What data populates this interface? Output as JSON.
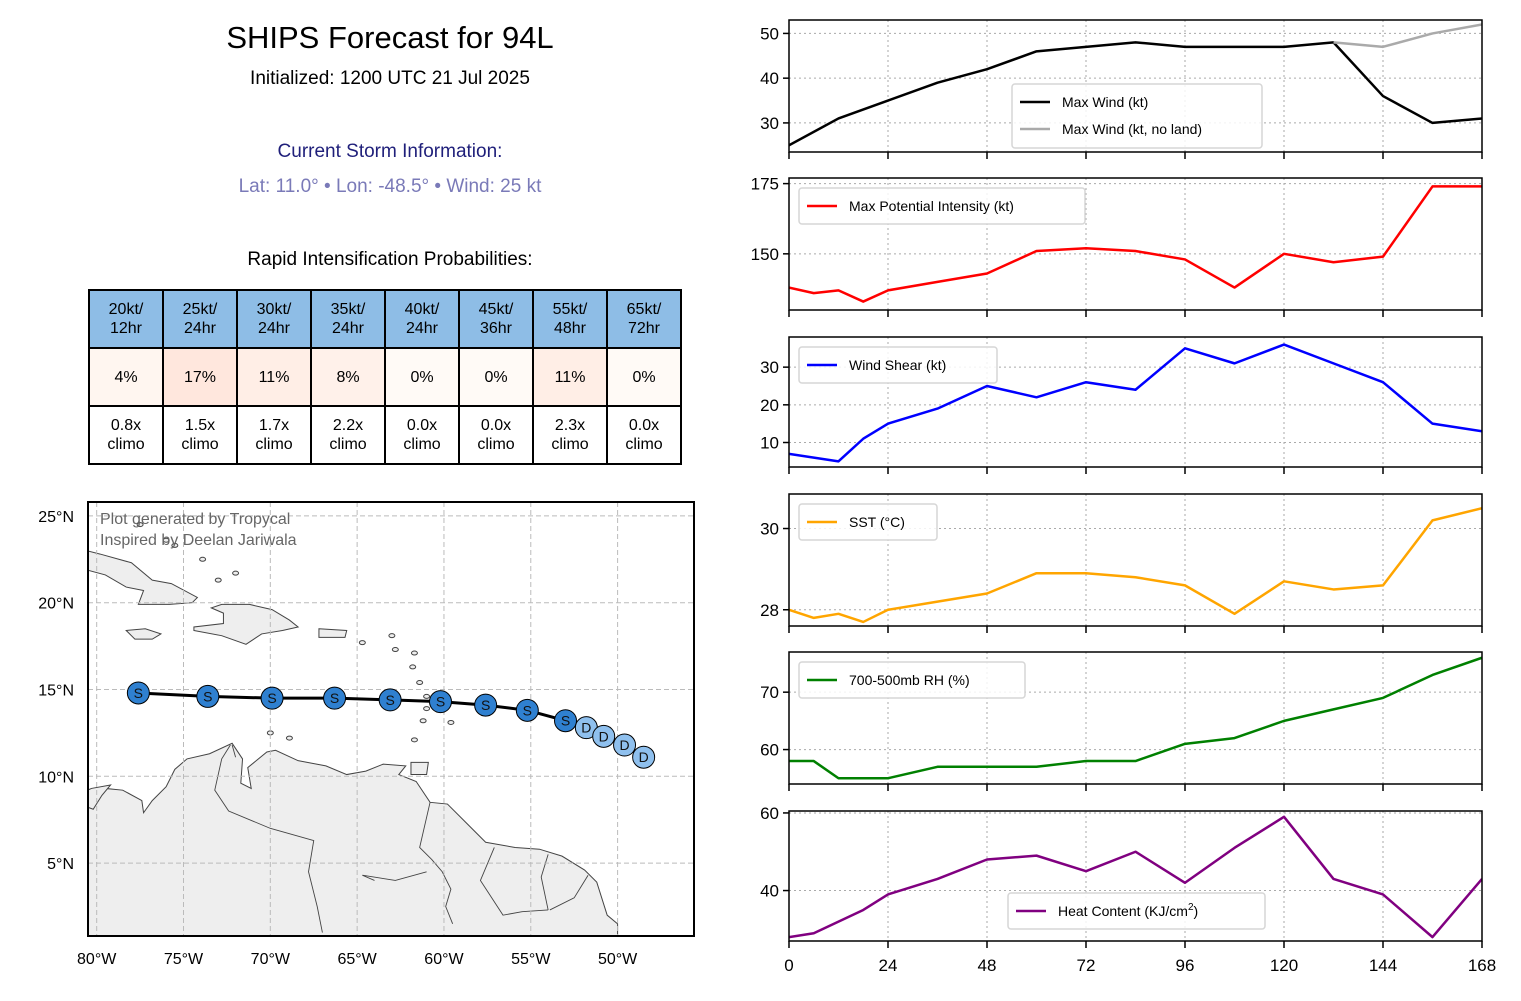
{
  "header": {
    "title": "SHIPS Forecast for 94L",
    "initialized": "Initialized: 1200 UTC 21 Jul 2025",
    "storm_heading": "Current Storm Information:",
    "storm_details": "Lat: 11.0°  • Lon: -48.5°  • Wind: 25 kt",
    "ri_heading": "Rapid Intensification Probabilities:"
  },
  "ri_table": {
    "columns": [
      {
        "threshold": "20kt/",
        "period": "12hr",
        "prob": "4%",
        "prob_value": 4,
        "climo": "0.8x",
        "climo_label": "climo"
      },
      {
        "threshold": "25kt/",
        "period": "24hr",
        "prob": "17%",
        "prob_value": 17,
        "climo": "1.5x",
        "climo_label": "climo"
      },
      {
        "threshold": "30kt/",
        "period": "24hr",
        "prob": "11%",
        "prob_value": 11,
        "climo": "1.7x",
        "climo_label": "climo"
      },
      {
        "threshold": "35kt/",
        "period": "24hr",
        "prob": "8%",
        "prob_value": 8,
        "climo": "2.2x",
        "climo_label": "climo"
      },
      {
        "threshold": "40kt/",
        "period": "24hr",
        "prob": "0%",
        "prob_value": 0,
        "climo": "0.0x",
        "climo_label": "climo"
      },
      {
        "threshold": "45kt/",
        "period": "36hr",
        "prob": "0%",
        "prob_value": 0,
        "climo": "0.0x",
        "climo_label": "climo"
      },
      {
        "threshold": "55kt/",
        "period": "48hr",
        "prob": "11%",
        "prob_value": 11,
        "climo": "2.3x",
        "climo_label": "climo"
      },
      {
        "threshold": "65kt/",
        "period": "72hr",
        "prob": "0%",
        "prob_value": 0,
        "climo": "0.0x",
        "climo_label": "climo"
      }
    ],
    "header_color": "#8ebde6"
  },
  "map": {
    "attribution_line1": "Plot generated by Tropycal",
    "attribution_line2": "Inspired by Deelan Jariwala",
    "lon_range": [
      -80.5,
      -45.6
    ],
    "lat_range": [
      0.8,
      25.8
    ],
    "lon_ticks": [
      {
        "v": -80,
        "label": "80°W"
      },
      {
        "v": -75,
        "label": "75°W"
      },
      {
        "v": -70,
        "label": "70°W"
      },
      {
        "v": -65,
        "label": "65°W"
      },
      {
        "v": -60,
        "label": "60°W"
      },
      {
        "v": -55,
        "label": "55°W"
      },
      {
        "v": -50,
        "label": "50°W"
      }
    ],
    "lat_ticks": [
      {
        "v": 25,
        "label": "25°N"
      },
      {
        "v": 20,
        "label": "20°N"
      },
      {
        "v": 15,
        "label": "15°N"
      },
      {
        "v": 10,
        "label": "10°N"
      },
      {
        "v": 5,
        "label": "5°N"
      }
    ],
    "track": [
      {
        "lon": -77.6,
        "lat": 14.8,
        "type": "S"
      },
      {
        "lon": -73.6,
        "lat": 14.6,
        "type": "S"
      },
      {
        "lon": -69.9,
        "lat": 14.5,
        "type": "S"
      },
      {
        "lon": -66.3,
        "lat": 14.5,
        "type": "S"
      },
      {
        "lon": -63.1,
        "lat": 14.4,
        "type": "S"
      },
      {
        "lon": -60.2,
        "lat": 14.3,
        "type": "S"
      },
      {
        "lon": -57.6,
        "lat": 14.1,
        "type": "S"
      },
      {
        "lon": -55.2,
        "lat": 13.8,
        "type": "S"
      },
      {
        "lon": -53.0,
        "lat": 13.2,
        "type": "S"
      },
      {
        "lon": -51.8,
        "lat": 12.8,
        "type": "D"
      },
      {
        "lon": -50.8,
        "lat": 12.3,
        "type": "D"
      },
      {
        "lon": -49.6,
        "lat": 11.8,
        "type": "D"
      },
      {
        "lon": -48.5,
        "lat": 11.1,
        "type": "D"
      }
    ],
    "colors": {
      "storm": "#2f80d0",
      "depression": "#8fc0ee",
      "land": "#eeeeee",
      "coast": "#444444"
    }
  },
  "chart_data": [
    {
      "type": "line",
      "title": "",
      "xlabel": "",
      "ylabel": "",
      "x": [
        0,
        12,
        24,
        36,
        48,
        60,
        72,
        84,
        96,
        108,
        120,
        132,
        144,
        156,
        168
      ],
      "xlim": [
        0,
        168
      ],
      "ylim": [
        23.5,
        53
      ],
      "yticks": [
        30,
        40,
        50
      ],
      "legend": "bottom-center",
      "grid": true,
      "series": [
        {
          "name": "Max Wind (kt)",
          "color": "#000000",
          "x": [
            0,
            12,
            24,
            36,
            48,
            60,
            72,
            84,
            96,
            108,
            120,
            132,
            144,
            156,
            168
          ],
          "values": [
            25,
            31,
            35,
            39,
            42,
            46,
            47,
            48,
            47,
            47,
            47,
            48,
            36,
            30,
            31
          ]
        },
        {
          "name": "Max Wind (kt, no land)",
          "color": "#aaaaaa",
          "x": [
            132,
            144,
            156,
            168
          ],
          "values": [
            48,
            47,
            50,
            52
          ]
        }
      ]
    },
    {
      "type": "line",
      "xlim": [
        0,
        168
      ],
      "ylim": [
        130,
        177
      ],
      "yticks": [
        150,
        175
      ],
      "legend": "top-left",
      "grid": true,
      "series": [
        {
          "name": "Max Potential Intensity (kt)",
          "color": "#ff0000",
          "x": [
            0,
            6,
            12,
            18,
            24,
            36,
            48,
            60,
            72,
            84,
            96,
            108,
            120,
            132,
            144,
            156,
            168
          ],
          "values": [
            138,
            136,
            137,
            133,
            137,
            140,
            143,
            151,
            152,
            151,
            148,
            138,
            150,
            147,
            149,
            174,
            174
          ]
        }
      ]
    },
    {
      "type": "line",
      "xlim": [
        0,
        168
      ],
      "ylim": [
        3.5,
        38
      ],
      "yticks": [
        10,
        20,
        30
      ],
      "legend": "top-left",
      "grid": true,
      "series": [
        {
          "name": "Wind Shear (kt)",
          "color": "#0000ff",
          "x": [
            0,
            12,
            18,
            24,
            36,
            48,
            60,
            72,
            84,
            96,
            108,
            120,
            132,
            144,
            156,
            168
          ],
          "values": [
            7,
            5,
            11,
            15,
            19,
            25,
            22,
            26,
            24,
            35,
            31,
            36,
            31,
            26,
            15,
            13
          ]
        }
      ]
    },
    {
      "type": "line",
      "xlim": [
        0,
        168
      ],
      "ylim": [
        27.6,
        30.85
      ],
      "yticks": [
        28,
        30
      ],
      "legend": "top-left",
      "grid": true,
      "series": [
        {
          "name": "SST (°C)",
          "color": "#ffa500",
          "x": [
            0,
            6,
            12,
            18,
            24,
            36,
            48,
            60,
            72,
            84,
            96,
            108,
            120,
            132,
            144,
            156,
            168
          ],
          "values": [
            28.0,
            27.8,
            27.9,
            27.7,
            28.0,
            28.2,
            28.4,
            28.9,
            28.9,
            28.8,
            28.6,
            27.9,
            28.7,
            28.5,
            28.6,
            30.2,
            30.5
          ]
        }
      ]
    },
    {
      "type": "line",
      "xlim": [
        0,
        168
      ],
      "ylim": [
        54,
        77
      ],
      "yticks": [
        60,
        70
      ],
      "legend": "top-left",
      "grid": true,
      "series": [
        {
          "name": "700-500mb RH (%)",
          "color": "#008000",
          "x": [
            0,
            6,
            12,
            18,
            24,
            36,
            48,
            60,
            72,
            84,
            96,
            108,
            120,
            132,
            144,
            156,
            168
          ],
          "values": [
            58,
            58,
            55,
            55,
            55,
            57,
            57,
            57,
            58,
            58,
            61,
            62,
            65,
            67,
            69,
            73,
            76
          ]
        }
      ]
    },
    {
      "type": "line",
      "xlim": [
        0,
        168
      ],
      "ylim": [
        27,
        60.5
      ],
      "yticks": [
        40,
        60
      ],
      "xticks": [
        0,
        24,
        48,
        72,
        96,
        120,
        144,
        168
      ],
      "legend": "bottom-center",
      "grid": true,
      "series": [
        {
          "name": "Heat Content (KJ/cm",
          "name_sup": "2",
          "name_suffix": ")",
          "color": "#800080",
          "x": [
            0,
            6,
            18,
            24,
            36,
            48,
            60,
            72,
            84,
            96,
            108,
            120,
            132,
            144,
            156,
            168
          ],
          "values": [
            28,
            29,
            35,
            39,
            43,
            48,
            49,
            45,
            50,
            42,
            51,
            59,
            43,
            39,
            28,
            43
          ]
        }
      ]
    }
  ]
}
